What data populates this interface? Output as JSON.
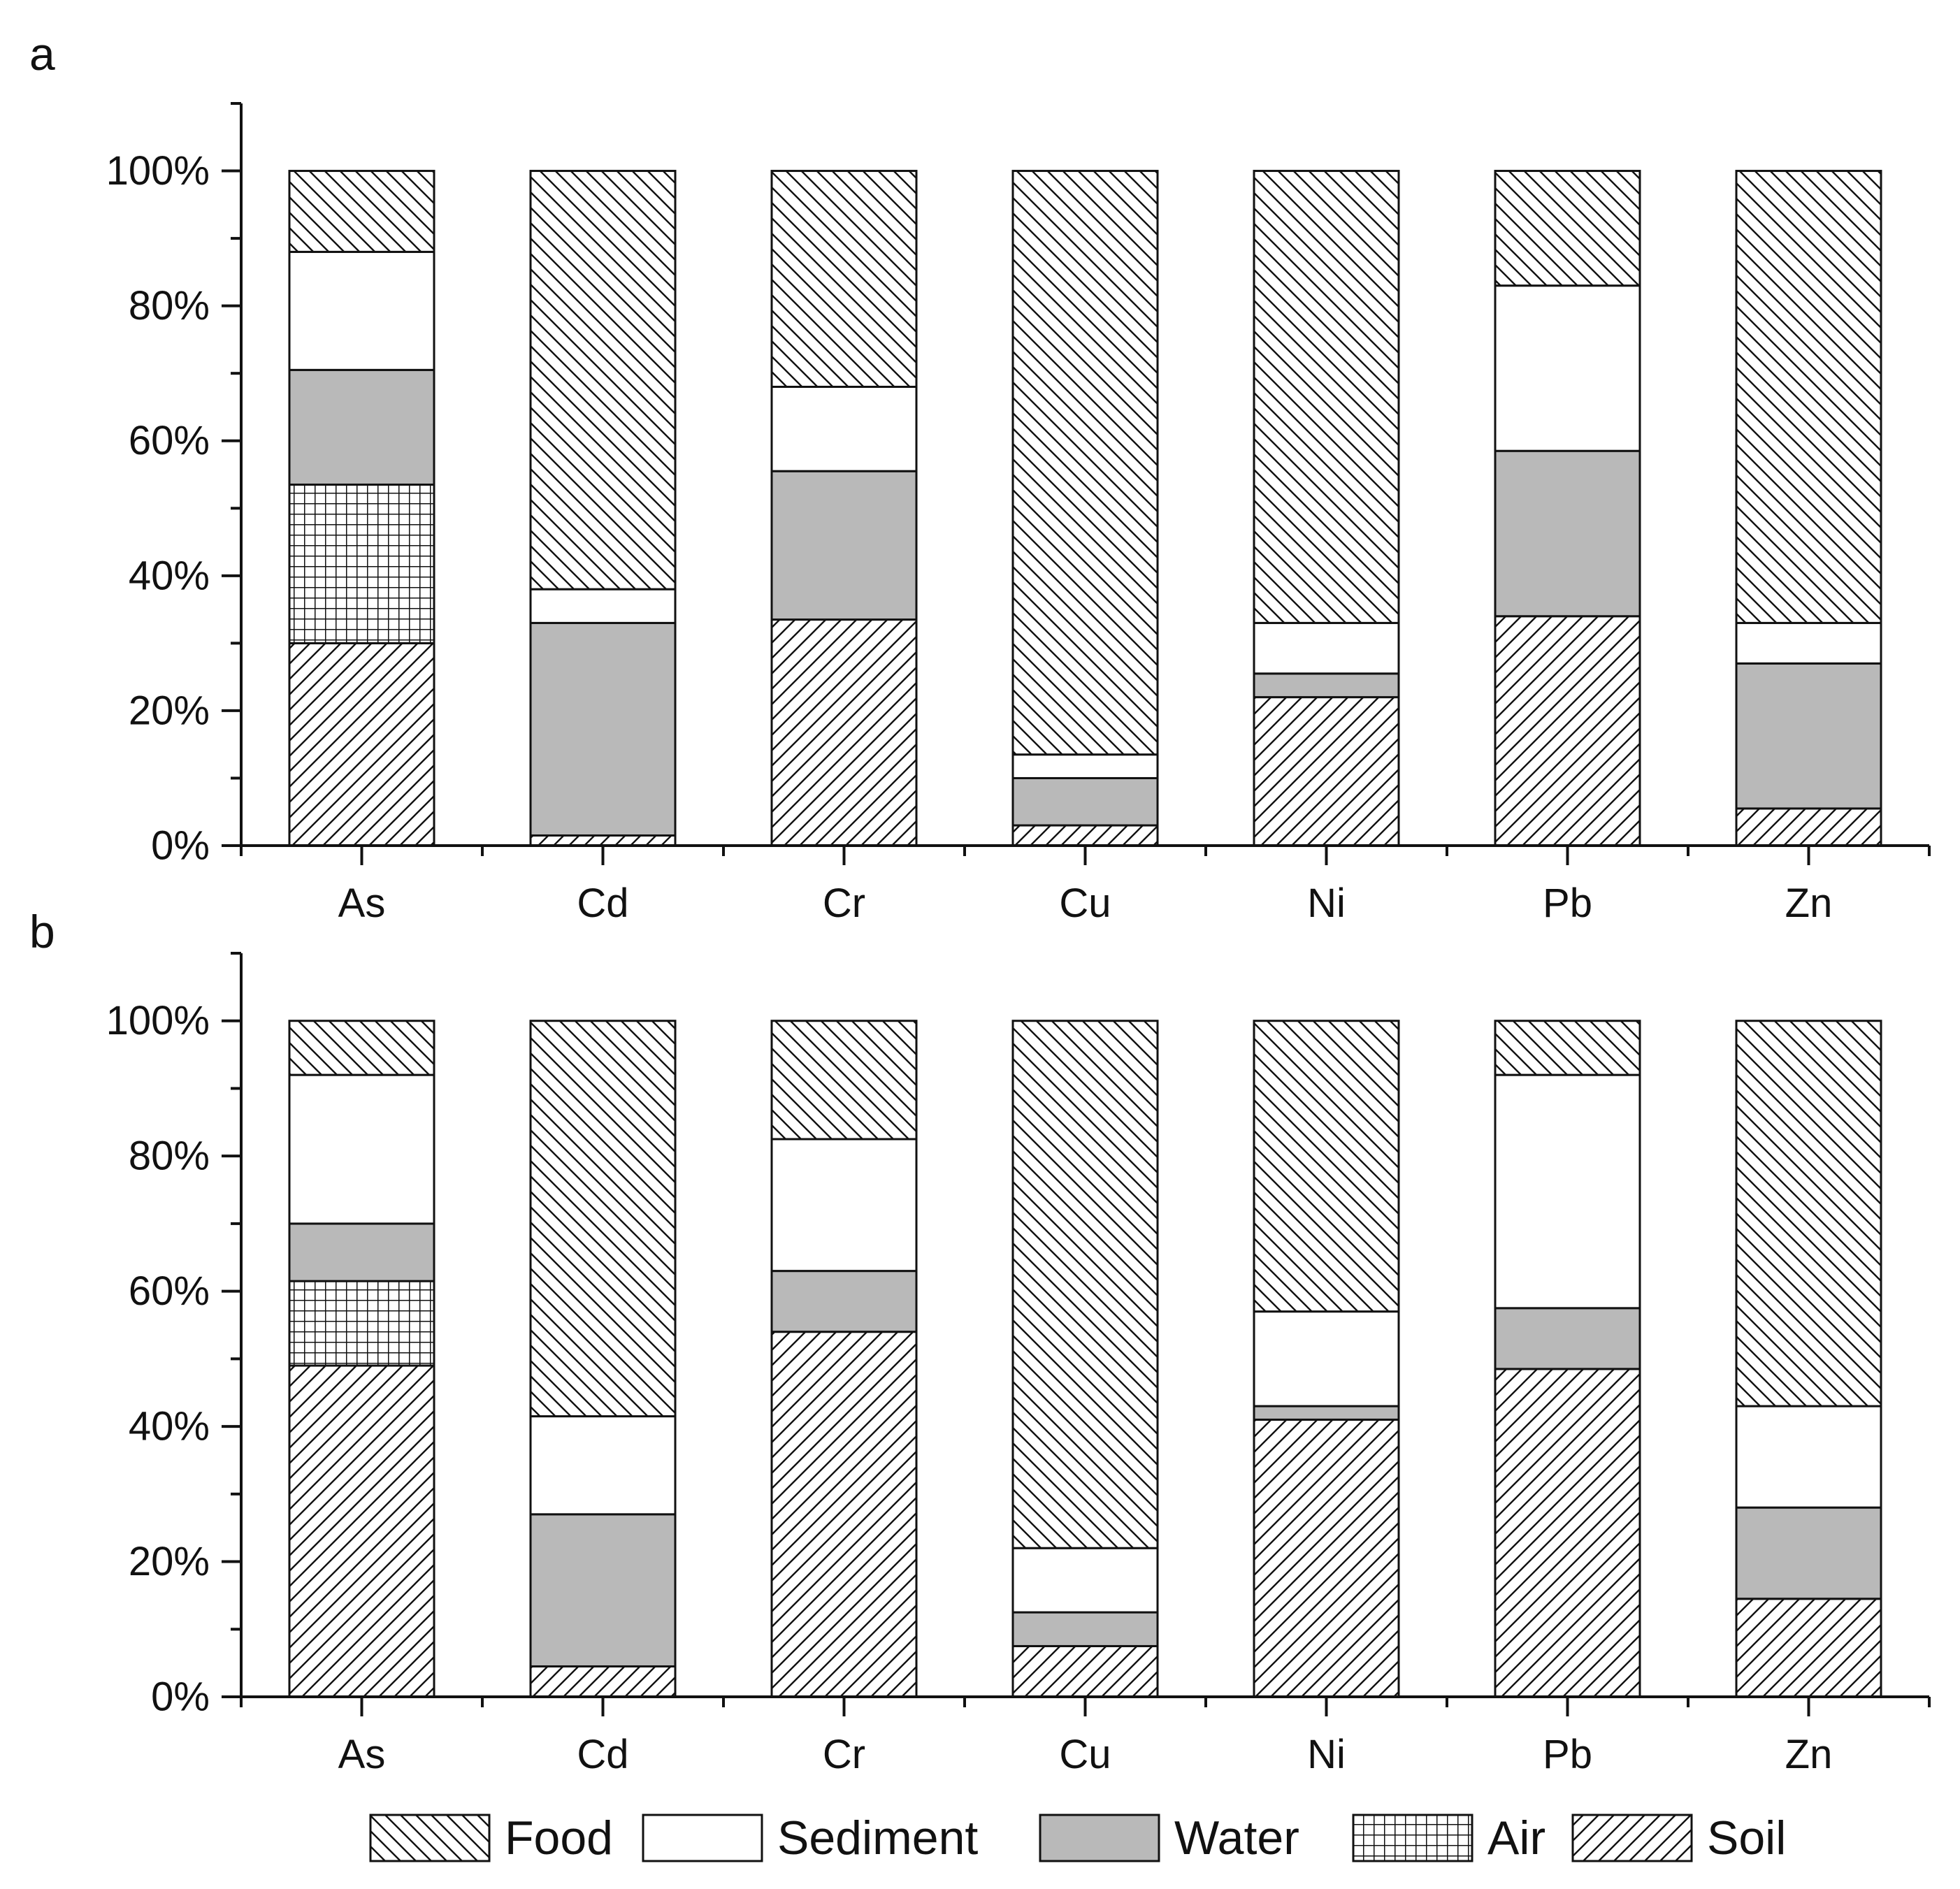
{
  "chart_data": [
    {
      "panel_label": "a",
      "type": "bar",
      "stacked": true,
      "percent_stacked": true,
      "categories": [
        "As",
        "Cd",
        "Cr",
        "Cu",
        "Ni",
        "Pb",
        "Zn"
      ],
      "ylim": [
        0,
        110
      ],
      "yticks": [
        0,
        20,
        40,
        60,
        80,
        100
      ],
      "ytick_labels": [
        "0%",
        "20%",
        "40%",
        "60%",
        "80%",
        "100%"
      ],
      "grid": false,
      "series": [
        {
          "name": "Soil",
          "pattern": "diag-up",
          "values": [
            30.0,
            1.5,
            33.5,
            3.0,
            22.0,
            34.0,
            5.5
          ]
        },
        {
          "name": "Air",
          "pattern": "grid",
          "values": [
            23.5,
            0.0,
            0.0,
            0.0,
            0.0,
            0.0,
            0.0
          ]
        },
        {
          "name": "Water",
          "pattern": "gray",
          "values": [
            17.0,
            31.5,
            22.0,
            7.0,
            3.5,
            24.5,
            21.5
          ]
        },
        {
          "name": "Sediment",
          "pattern": "white",
          "values": [
            17.5,
            5.0,
            12.5,
            3.5,
            7.5,
            24.5,
            6.0
          ]
        },
        {
          "name": "Food",
          "pattern": "diag-down",
          "values": [
            12.0,
            62.0,
            32.0,
            86.5,
            67.0,
            17.0,
            67.0
          ]
        }
      ]
    },
    {
      "panel_label": "b",
      "type": "bar",
      "stacked": true,
      "percent_stacked": true,
      "categories": [
        "As",
        "Cd",
        "Cr",
        "Cu",
        "Ni",
        "Pb",
        "Zn"
      ],
      "ylim": [
        0,
        110
      ],
      "yticks": [
        0,
        20,
        40,
        60,
        80,
        100
      ],
      "ytick_labels": [
        "0%",
        "20%",
        "40%",
        "60%",
        "80%",
        "100%"
      ],
      "grid": false,
      "series": [
        {
          "name": "Soil",
          "pattern": "diag-up",
          "values": [
            49.0,
            4.5,
            54.0,
            7.5,
            41.0,
            48.5,
            14.5
          ]
        },
        {
          "name": "Air",
          "pattern": "grid",
          "values": [
            12.5,
            0.0,
            0.0,
            0.0,
            0.0,
            0.0,
            0.0
          ]
        },
        {
          "name": "Water",
          "pattern": "gray",
          "values": [
            8.5,
            22.5,
            9.0,
            5.0,
            2.0,
            9.0,
            13.5
          ]
        },
        {
          "name": "Sediment",
          "pattern": "white",
          "values": [
            22.0,
            14.5,
            19.5,
            9.5,
            14.0,
            34.5,
            15.0
          ]
        },
        {
          "name": "Food",
          "pattern": "diag-down",
          "values": [
            8.0,
            58.5,
            17.5,
            78.0,
            43.0,
            8.0,
            57.0
          ]
        }
      ]
    }
  ],
  "legend": {
    "placement": "bottom-center",
    "entries": [
      {
        "label": "Food",
        "pattern": "diag-down"
      },
      {
        "label": "Sediment",
        "pattern": "white"
      },
      {
        "label": "Water",
        "pattern": "gray"
      },
      {
        "label": "Air",
        "pattern": "grid"
      },
      {
        "label": "Soil",
        "pattern": "diag-up"
      }
    ]
  },
  "colors": {
    "stroke": "#111111",
    "water_fill": "#b9b9b9",
    "background": "#ffffff"
  }
}
